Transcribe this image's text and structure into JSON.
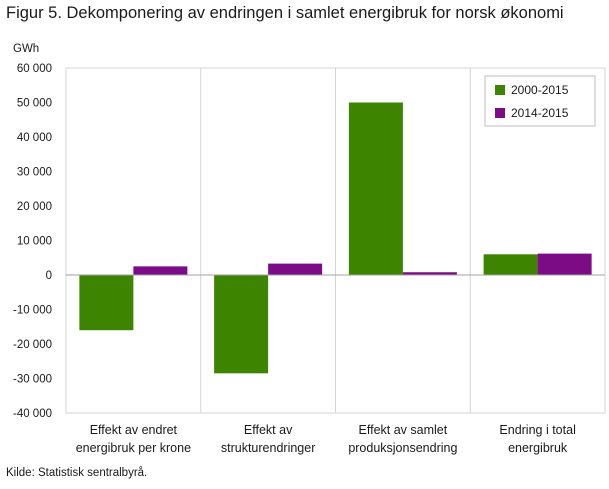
{
  "figure": {
    "title": "Figur 5. Dekomponering av endringen i samlet energibruk for norsk økonomi",
    "source": "Kilde: Statistisk sentralbyrå."
  },
  "chart_data": {
    "type": "bar",
    "ylabel": "GWh",
    "ylim": [
      -40000,
      60000
    ],
    "yticks": [
      60000,
      50000,
      40000,
      30000,
      20000,
      10000,
      0,
      -10000,
      -20000,
      -30000,
      -40000
    ],
    "ytick_labels": [
      "60 000",
      "50 000",
      "40 000",
      "30 000",
      "20 000",
      "10 000",
      "0",
      "-10 000",
      "-20 000",
      "-30 000",
      "-40 000"
    ],
    "categories": [
      [
        "Effekt av endret",
        "energibruk per krone"
      ],
      [
        "Effekt av",
        "strukturendringer"
      ],
      [
        "Effekt av samlet",
        "produksjonsendring"
      ],
      [
        "Endring i total",
        "energibruk"
      ]
    ],
    "series": [
      {
        "name": "2000-2015",
        "color": "#3d8401",
        "values": [
          -16000,
          -28500,
          50000,
          6000
        ]
      },
      {
        "name": "2014-2015",
        "color": "#7b0c86",
        "values": [
          2500,
          3300,
          800,
          6200
        ]
      }
    ],
    "grid": "vertical separators between categories",
    "legend_position": "top-right"
  }
}
